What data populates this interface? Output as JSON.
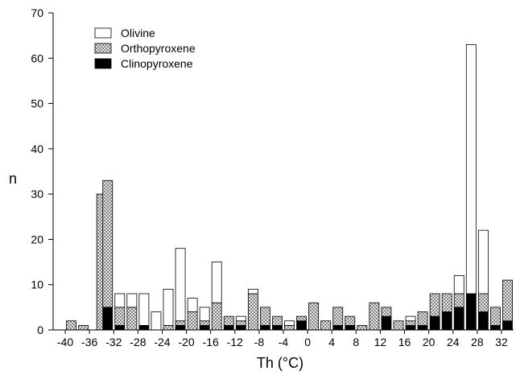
{
  "chart_data": {
    "type": "bar",
    "xlabel": "Th (°C)",
    "ylabel": "n",
    "ylim": [
      0,
      70
    ],
    "yticks": [
      0,
      10,
      20,
      30,
      40,
      50,
      60,
      70
    ],
    "xlim": [
      -42,
      34
    ],
    "xtick_values": [
      -40,
      -36,
      -32,
      -28,
      -24,
      -20,
      -16,
      -12,
      -8,
      -4,
      0,
      4,
      8,
      12,
      16,
      20,
      24,
      28,
      32
    ],
    "xtick_labels": [
      "-40",
      "-36",
      "-32",
      "-28",
      "-24",
      "-20",
      "-16",
      "-12",
      "-8",
      "-4",
      "0",
      "4",
      "8",
      "12",
      "16",
      "20",
      "24",
      "28",
      "32"
    ],
    "stacked": true,
    "bin_width": 1.6,
    "grid": false,
    "legend_position": "top-left",
    "colors": {
      "Olivine": "#ffffff",
      "Orthopyroxene": "#c8c8c8",
      "Clinopyroxene": "#000000"
    },
    "x": [
      -39,
      -37,
      -34,
      -33,
      -31,
      -29,
      -27,
      -25,
      -23,
      -21,
      -19,
      -17,
      -15,
      -13,
      -11,
      -9,
      -7,
      -5,
      -3,
      -1,
      1,
      3,
      5,
      7,
      9,
      11,
      13,
      15,
      17,
      19,
      21,
      23,
      25,
      27,
      29,
      31,
      33
    ],
    "series": [
      {
        "name": "Clinopyroxene",
        "pattern": "solid",
        "values": [
          0,
          0,
          0,
          5,
          1,
          0,
          1,
          0,
          0,
          1,
          0,
          1,
          0,
          1,
          1,
          0,
          1,
          1,
          0,
          2,
          0,
          0,
          1,
          1,
          0,
          0,
          3,
          0,
          1,
          1,
          3,
          4,
          5,
          8,
          4,
          1,
          2
        ]
      },
      {
        "name": "Orthopyroxene",
        "pattern": "crosshatch",
        "values": [
          2,
          1,
          30,
          28,
          4,
          5,
          0,
          0,
          1,
          1,
          4,
          1,
          6,
          2,
          1,
          8,
          4,
          2,
          1,
          1,
          6,
          2,
          4,
          2,
          1,
          6,
          2,
          2,
          1,
          3,
          5,
          4,
          3,
          0,
          4,
          4,
          9
        ]
      },
      {
        "name": "Olivine",
        "pattern": "open",
        "values": [
          0,
          0,
          0,
          0,
          3,
          3,
          7,
          4,
          8,
          16,
          3,
          3,
          9,
          0,
          1,
          1,
          0,
          0,
          1,
          0,
          0,
          0,
          0,
          0,
          0,
          0,
          0,
          0,
          1,
          0,
          0,
          0,
          4,
          55,
          14,
          0,
          0
        ]
      }
    ]
  }
}
